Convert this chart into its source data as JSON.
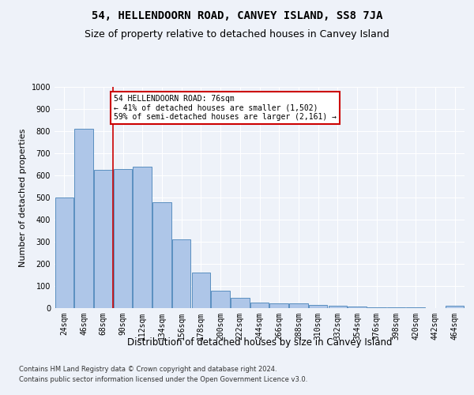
{
  "title": "54, HELLENDOORN ROAD, CANVEY ISLAND, SS8 7JA",
  "subtitle": "Size of property relative to detached houses in Canvey Island",
  "xlabel": "Distribution of detached houses by size in Canvey Island",
  "ylabel": "Number of detached properties",
  "categories": [
    "24sqm",
    "46sqm",
    "68sqm",
    "90sqm",
    "112sqm",
    "134sqm",
    "156sqm",
    "178sqm",
    "200sqm",
    "222sqm",
    "244sqm",
    "266sqm",
    "288sqm",
    "310sqm",
    "332sqm",
    "354sqm",
    "376sqm",
    "398sqm",
    "420sqm",
    "442sqm",
    "464sqm"
  ],
  "values": [
    500,
    810,
    625,
    628,
    640,
    480,
    312,
    162,
    80,
    45,
    25,
    22,
    20,
    13,
    12,
    8,
    2,
    2,
    2,
    0,
    10
  ],
  "bar_color": "#aec6e8",
  "bar_edge_color": "#5a8fc0",
  "annotation_text": "54 HELLENDOORN ROAD: 76sqm\n← 41% of detached houses are smaller (1,502)\n59% of semi-detached houses are larger (2,161) →",
  "annotation_box_color": "#ffffff",
  "annotation_box_edge_color": "#cc0000",
  "vline_color": "#cc0000",
  "vline_x_data": 2.5,
  "ylim": [
    0,
    1000
  ],
  "yticks": [
    0,
    100,
    200,
    300,
    400,
    500,
    600,
    700,
    800,
    900,
    1000
  ],
  "footer1": "Contains HM Land Registry data © Crown copyright and database right 2024.",
  "footer2": "Contains public sector information licensed under the Open Government Licence v3.0.",
  "bg_color": "#eef2f9",
  "plot_bg_color": "#eef2f9",
  "grid_color": "#ffffff",
  "title_fontsize": 10,
  "subtitle_fontsize": 9,
  "xlabel_fontsize": 8.5,
  "ylabel_fontsize": 8,
  "tick_fontsize": 7,
  "annotation_fontsize": 7,
  "footer_fontsize": 6
}
